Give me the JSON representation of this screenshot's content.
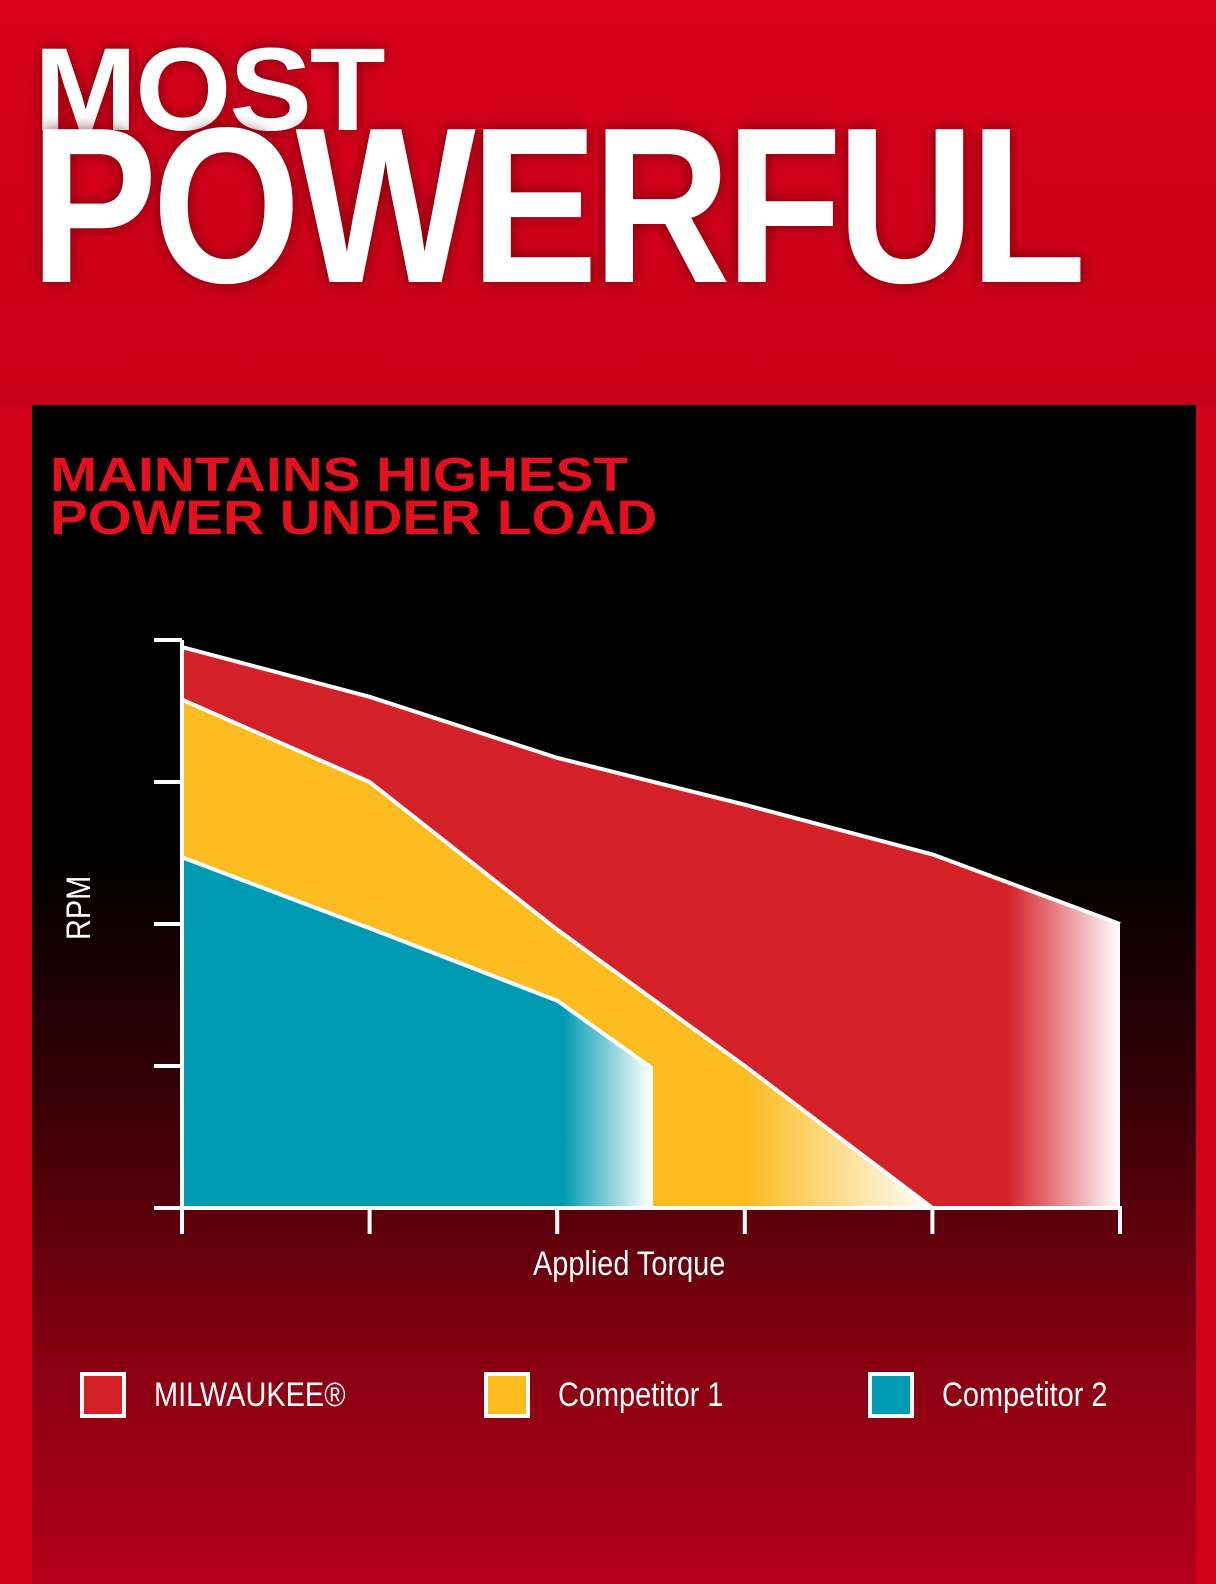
{
  "header": {
    "line1": "MOST",
    "line2": "POWERFUL"
  },
  "chart_data": {
    "type": "area",
    "title": "MAINTAINS HIGHEST POWER UNDER LOAD",
    "title_lines": [
      "MAINTAINS HIGHEST",
      "POWER UNDER LOAD"
    ],
    "xlabel": "Applied Torque",
    "ylabel": "RPM",
    "xlim": [
      0,
      5
    ],
    "ylim": [
      0,
      4
    ],
    "x_ticks": [
      0,
      1,
      2,
      3,
      4,
      5
    ],
    "y_ticks": [
      0,
      1,
      2,
      3,
      4
    ],
    "tick_labels_shown": false,
    "grid": false,
    "legend_placement": "bottom",
    "series": [
      {
        "name": "MILWAUKEE®",
        "color": "#d42027",
        "points": [
          [
            0,
            3.95
          ],
          [
            1,
            3.6
          ],
          [
            2,
            3.17
          ],
          [
            3,
            2.84
          ],
          [
            4,
            2.49
          ],
          [
            5,
            2.0
          ]
        ],
        "fade_from": 4.4
      },
      {
        "name": "Competitor 1",
        "color": "#fcbb1e",
        "points": [
          [
            0,
            3.58
          ],
          [
            1,
            3.0
          ],
          [
            2,
            1.96
          ],
          [
            3,
            1.0
          ],
          [
            4,
            0
          ]
        ],
        "fade_from": 3.0
      },
      {
        "name": "Competitor 2",
        "color": "#009bb2",
        "points": [
          [
            0,
            2.47
          ],
          [
            1,
            1.97
          ],
          [
            2,
            1.46
          ],
          [
            2.5,
            0.99
          ],
          [
            2.5,
            0
          ]
        ],
        "fade_from": 2.03
      }
    ]
  }
}
